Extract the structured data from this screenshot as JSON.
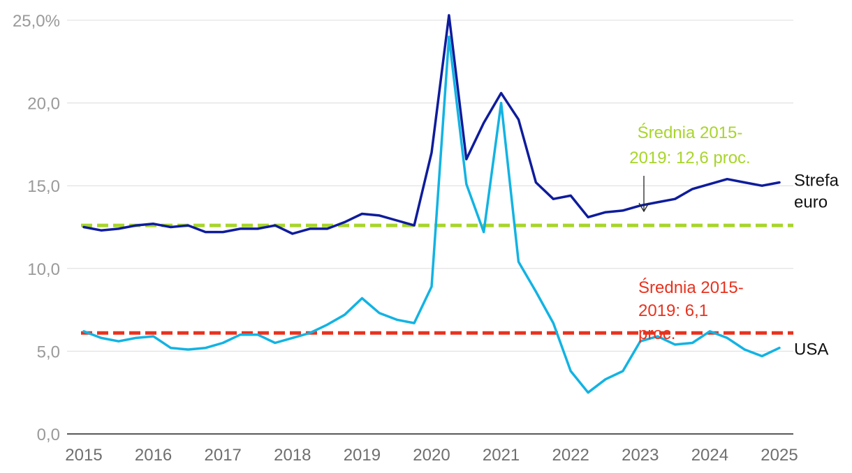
{
  "chart_data": {
    "type": "line",
    "title": "",
    "xlabel": "",
    "ylabel": "",
    "ylim": [
      0,
      25
    ],
    "xlim": [
      2015,
      2025
    ],
    "grid": true,
    "y_ticks": [
      "0,0",
      "5,0",
      "10,0",
      "15,0",
      "20,0",
      "25,0%"
    ],
    "x_ticks": [
      "2015",
      "2016",
      "2017",
      "2018",
      "2019",
      "2020",
      "2021",
      "2022",
      "2023",
      "2024",
      "2025"
    ],
    "series": [
      {
        "name": "Strefa euro",
        "label_lines": [
          "Strefa",
          "euro"
        ],
        "color": "#0e1c9c",
        "x": [
          2015.0,
          2015.25,
          2015.5,
          2015.75,
          2016.0,
          2016.25,
          2016.5,
          2016.75,
          2017.0,
          2017.25,
          2017.5,
          2017.75,
          2018.0,
          2018.25,
          2018.5,
          2018.75,
          2019.0,
          2019.25,
          2019.5,
          2019.75,
          2020.0,
          2020.25,
          2020.5,
          2020.75,
          2021.0,
          2021.25,
          2021.5,
          2021.75,
          2022.0,
          2022.25,
          2022.5,
          2022.75,
          2023.0,
          2023.25,
          2023.5,
          2023.75,
          2024.0,
          2024.25,
          2024.5,
          2024.75,
          2025.0
        ],
        "values": [
          12.5,
          12.3,
          12.4,
          12.6,
          12.7,
          12.5,
          12.6,
          12.2,
          12.2,
          12.4,
          12.4,
          12.6,
          12.1,
          12.4,
          12.4,
          12.8,
          13.3,
          13.2,
          12.9,
          12.6,
          17.0,
          25.3,
          16.6,
          18.8,
          20.6,
          19.0,
          15.2,
          14.2,
          14.4,
          13.1,
          13.4,
          13.5,
          13.8,
          14.0,
          14.2,
          14.8,
          15.1,
          15.4,
          15.2,
          15.0,
          15.2
        ]
      },
      {
        "name": "USA",
        "label_lines": [
          "USA"
        ],
        "color": "#12b3e3",
        "x": [
          2015.0,
          2015.25,
          2015.5,
          2015.75,
          2016.0,
          2016.25,
          2016.5,
          2016.75,
          2017.0,
          2017.25,
          2017.5,
          2017.75,
          2018.0,
          2018.25,
          2018.5,
          2018.75,
          2019.0,
          2019.25,
          2019.5,
          2019.75,
          2020.0,
          2020.25,
          2020.5,
          2020.75,
          2021.0,
          2021.25,
          2021.5,
          2021.75,
          2022.0,
          2022.25,
          2022.5,
          2022.75,
          2023.0,
          2023.25,
          2023.5,
          2023.75,
          2024.0,
          2024.25,
          2024.5,
          2024.75,
          2025.0
        ],
        "values": [
          6.2,
          5.8,
          5.6,
          5.8,
          5.9,
          5.2,
          5.1,
          5.2,
          5.5,
          6.0,
          6.0,
          5.5,
          5.8,
          6.1,
          6.6,
          7.2,
          8.2,
          7.3,
          6.9,
          6.7,
          8.9,
          24.0,
          15.1,
          12.2,
          20.0,
          10.4,
          8.6,
          6.7,
          3.8,
          2.5,
          3.3,
          3.8,
          5.6,
          5.9,
          5.4,
          5.5,
          6.2,
          5.8,
          5.1,
          4.7,
          5.2
        ]
      }
    ],
    "averages": [
      {
        "name": "eurozone-average",
        "value": 12.6,
        "color": "#a8d52b",
        "label_lines": [
          "Średnia 2015-",
          "2019: 12,6 proc."
        ],
        "has_arrow": true
      },
      {
        "name": "usa-average",
        "value": 6.1,
        "color": "#e8321e",
        "label_lines": [
          "Średnia 2015-",
          "2019: 6,1",
          "proc."
        ],
        "has_arrow": false
      }
    ]
  }
}
